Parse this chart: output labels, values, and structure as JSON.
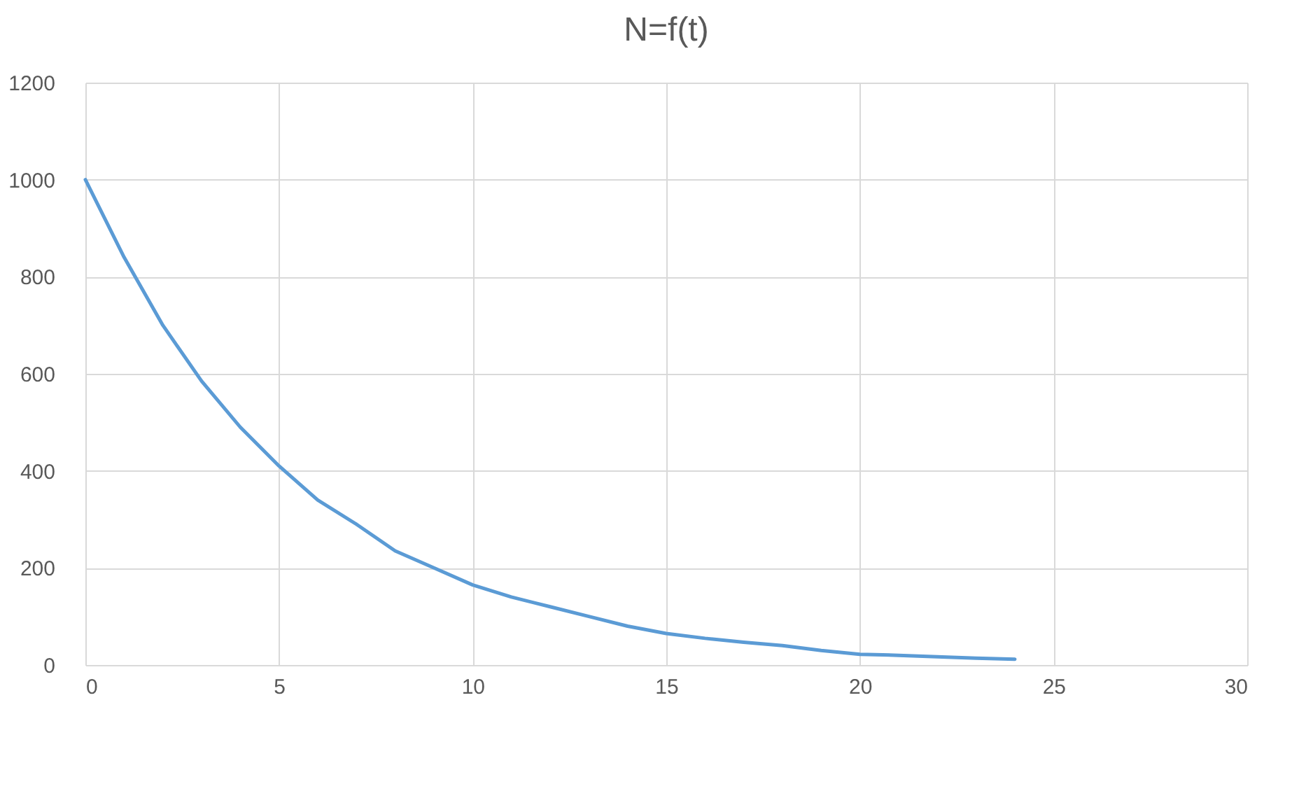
{
  "chart_data": {
    "type": "line",
    "title": "N=f(t)",
    "x": [
      0,
      1,
      2,
      3,
      4,
      5,
      6,
      7,
      8,
      9,
      10,
      11,
      12,
      13,
      14,
      15,
      16,
      17,
      18,
      19,
      20,
      21,
      22,
      23,
      24
    ],
    "series": [
      {
        "color": "#5b9bd5",
        "values": [
          1000,
          840,
          700,
          585,
          490,
          410,
          340,
          290,
          235,
          200,
          165,
          140,
          120,
          100,
          80,
          65,
          55,
          47,
          40,
          30,
          22,
          20,
          17,
          14,
          12
        ]
      }
    ],
    "xlim": [
      0,
      30
    ],
    "xticks": [
      0,
      5,
      10,
      15,
      20,
      25,
      30
    ],
    "ylim": [
      0,
      1200
    ],
    "yticks": [
      0,
      200,
      400,
      600,
      800,
      1000,
      1200
    ],
    "grid": true,
    "marker": "none",
    "line_style": "solid"
  }
}
